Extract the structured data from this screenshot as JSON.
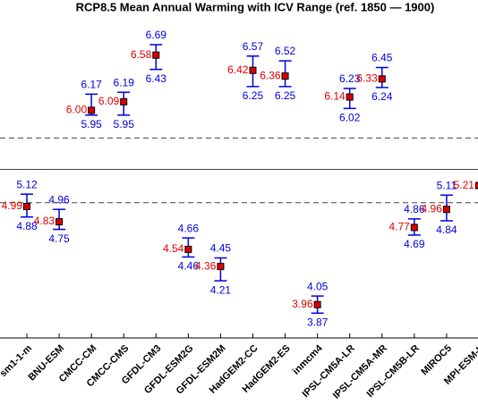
{
  "chart_data": {
    "type": "errorbar",
    "title": "RCP8.5 Mean Annual Warming with ICV Range (ref. 1850 — 1900)",
    "categories": [
      "sm1-1-m",
      "BNU-ESM",
      "CMCC-CM",
      "CMCC-CMS",
      "GFDL-CM3",
      "GFDL-ESM2G",
      "GFDL-ESM2M",
      "HadGEM2-CC",
      "HadGEM2-ES",
      "inmcm4",
      "IPSL-CM5A-LR",
      "IPSL-CM5A-MR",
      "IPSL-CM5B-LR",
      "MIROC5",
      "MPI-ESM-L"
    ],
    "values": [
      4.99,
      4.83,
      6.0,
      6.09,
      6.58,
      4.54,
      4.36,
      6.42,
      6.36,
      3.96,
      6.14,
      6.33,
      4.77,
      4.96,
      5.21
    ],
    "value_labels": [
      "4.99",
      "4.83",
      "6.00",
      "6.09",
      "6.58",
      "4.54",
      "4.36",
      "6.42",
      "6.36",
      "3.96",
      "6.14",
      "6.33",
      "4.77",
      "4.96",
      "5.21"
    ],
    "lower": [
      4.88,
      4.75,
      5.95,
      5.95,
      6.43,
      4.46,
      4.21,
      6.25,
      6.25,
      3.87,
      6.02,
      6.24,
      4.69,
      4.84,
      null
    ],
    "lower_labels": [
      "4.88",
      "4.75",
      "5.95",
      "5.95",
      "6.43",
      "4.46",
      "4.21",
      "6.25",
      "6.25",
      "3.87",
      "6.02",
      "6.24",
      "4.69",
      "4.84",
      null
    ],
    "upper": [
      5.12,
      4.96,
      6.17,
      6.19,
      6.69,
      4.66,
      4.45,
      6.57,
      6.52,
      4.05,
      6.23,
      6.45,
      4.86,
      5.11,
      null
    ],
    "upper_labels": [
      "5.12",
      "4.96",
      "6.17",
      "6.19",
      "6.69",
      "4.66",
      "4.45",
      "6.57",
      "6.52",
      "4.05",
      "6.23",
      "6.45",
      "4.86",
      "5.11",
      null
    ],
    "marker_color": "#e00000",
    "label_color": "#e00000",
    "bar_color": "#0000e0",
    "hlines": [
      {
        "value": 5.71,
        "style": "dashed"
      },
      {
        "value": 5.38,
        "style": "solid"
      },
      {
        "value": 5.03,
        "style": "dashed"
      }
    ],
    "ylim": [
      3.61,
      6.99
    ]
  }
}
